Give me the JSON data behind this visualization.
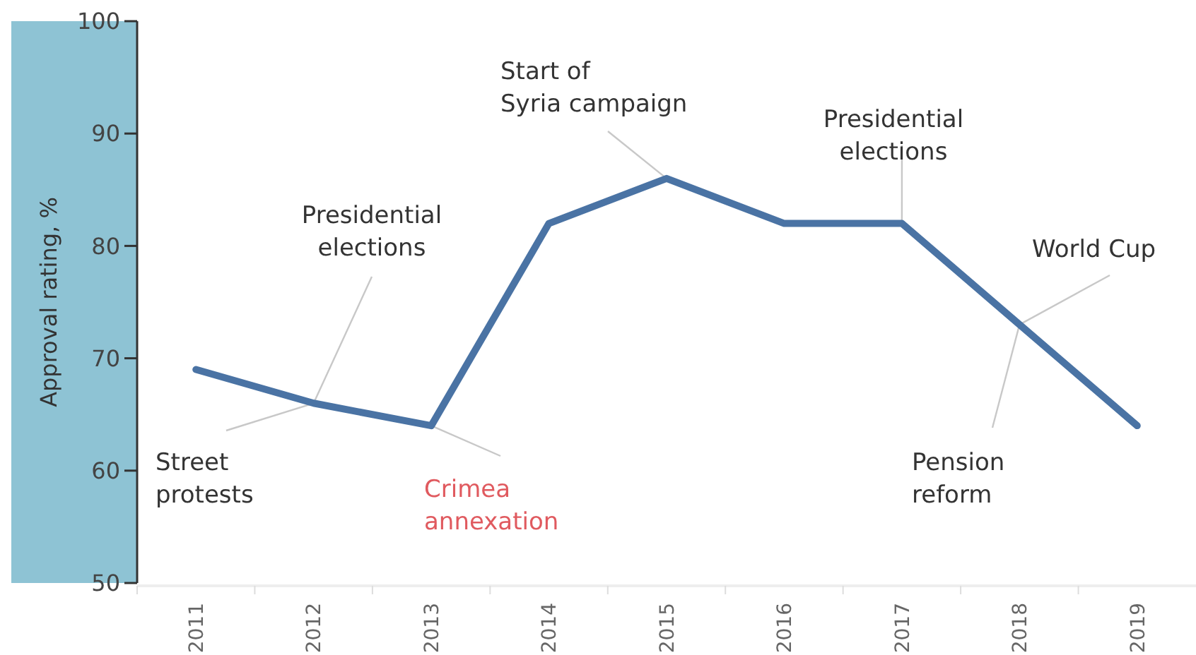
{
  "chart_data": {
    "type": "line",
    "ylabel": "Approval rating, %",
    "categories": [
      "2011",
      "2012",
      "2013",
      "2014",
      "2015",
      "2016",
      "2017",
      "2018",
      "2019"
    ],
    "series": [
      {
        "color": "#4a73a4",
        "values": [
          69,
          66,
          64,
          82,
          86,
          82,
          82,
          73,
          64
        ]
      }
    ],
    "ylim": [
      50,
      100
    ],
    "yticks": [
      50,
      60,
      70,
      80,
      90,
      100
    ],
    "grid": false,
    "marker": "none",
    "line_style": "solid",
    "annotations": [
      {
        "text": "Street protests",
        "x": "2012",
        "y": 66
      },
      {
        "text": "Presidential elections",
        "x": "2012",
        "y": 66
      },
      {
        "text": "Crimea annexation",
        "x": "2013",
        "y": 64
      },
      {
        "text": "Start of Syria campaign",
        "x": "2015",
        "y": 86
      },
      {
        "text": "Presidential elections",
        "x": "2017",
        "y": 82
      },
      {
        "text": "World Cup",
        "x": "2018",
        "y": 73
      },
      {
        "text": "Pension reform",
        "x": "2018",
        "y": 73
      }
    ]
  }
}
